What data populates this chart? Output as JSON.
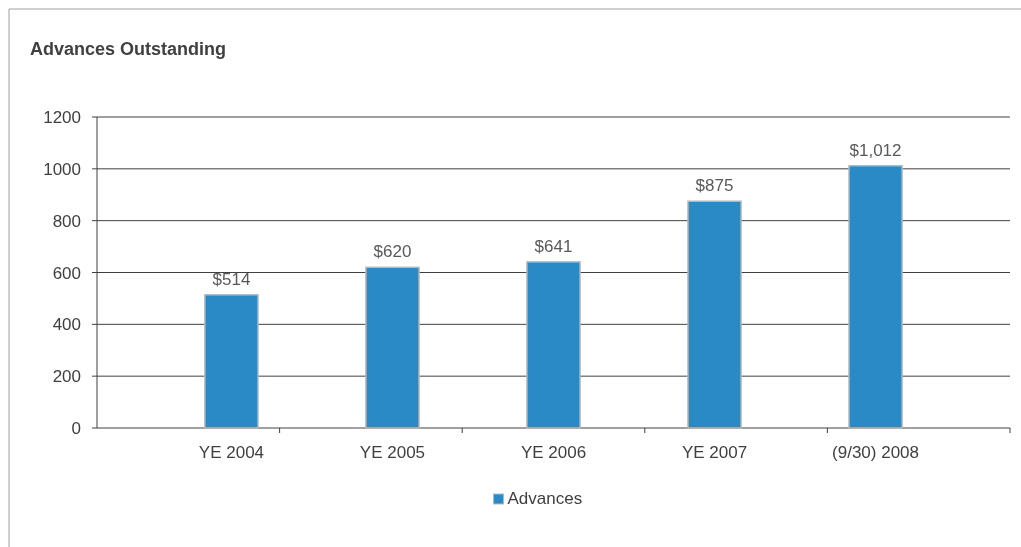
{
  "chart_data": {
    "type": "bar",
    "title": "Advances Outstanding",
    "categories": [
      "YE 2004",
      "YE 2005",
      "YE 2006",
      "YE 2007",
      "(9/30) 2008"
    ],
    "series": [
      {
        "name": "Advances",
        "color": "#2a8ac6",
        "values": [
          514,
          620,
          641,
          875,
          1012
        ],
        "value_labels": [
          "$514",
          "$620",
          "$641",
          "$875",
          "$1,012"
        ]
      }
    ],
    "ylim": [
      0,
      1200
    ],
    "yticks": [
      0,
      200,
      400,
      600,
      800,
      1000,
      1200
    ],
    "grid": "y",
    "legend": "bottom"
  }
}
